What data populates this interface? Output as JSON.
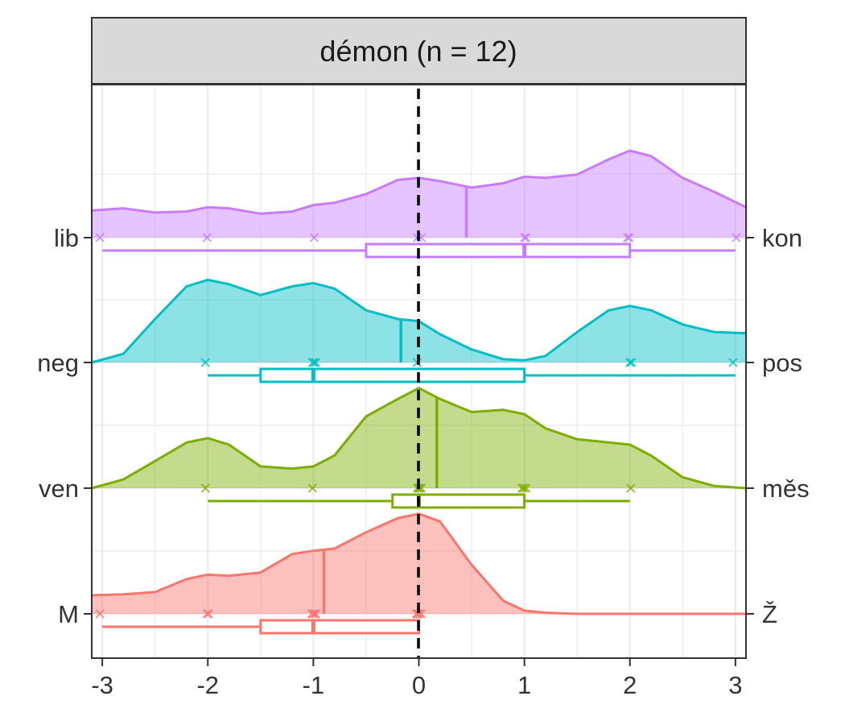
{
  "chart_data": {
    "type": "ridgeline-density",
    "title": "",
    "facet_title": "démon (n = 12)",
    "xlabel": "",
    "ylabel": "",
    "xlim": [
      -3.1,
      3.1
    ],
    "x_ticks": [
      "-3",
      "-2",
      "-1",
      "0",
      "1",
      "2",
      "3"
    ],
    "x_tick_values": [
      -3,
      -2,
      -1,
      0,
      1,
      2,
      3
    ],
    "reference_line_x": 0,
    "grid": true,
    "legend": "none",
    "density_x": [
      -3.1,
      -2.8,
      -2.5,
      -2.2,
      -2.0,
      -1.8,
      -1.5,
      -1.2,
      -1.0,
      -0.8,
      -0.5,
      -0.2,
      0.0,
      0.2,
      0.5,
      0.8,
      1.0,
      1.2,
      1.5,
      1.8,
      2.0,
      2.2,
      2.5,
      2.8,
      3.1
    ],
    "rows": [
      {
        "left_label": "M",
        "right_label": "Ž",
        "color": "#F8766D",
        "density": [
          0.17,
          0.18,
          0.2,
          0.32,
          0.36,
          0.35,
          0.38,
          0.55,
          0.58,
          0.6,
          0.75,
          0.88,
          0.92,
          0.85,
          0.45,
          0.12,
          0.03,
          0.01,
          0.0,
          0.0,
          0.0,
          0.0,
          0.0,
          0.0,
          0.0
        ],
        "mean": -0.9,
        "points": [
          -3,
          -2,
          -2,
          -1,
          -1,
          -1,
          -1,
          0,
          0,
          0,
          0,
          0
        ],
        "box": {
          "min": -3,
          "q1": -1.5,
          "median": -1,
          "q3": 0,
          "max": 0
        }
      },
      {
        "left_label": "ven",
        "right_label": "měs",
        "color": "#7CAE00",
        "density": [
          0.0,
          0.08,
          0.25,
          0.42,
          0.46,
          0.4,
          0.2,
          0.18,
          0.2,
          0.3,
          0.66,
          0.82,
          0.92,
          0.82,
          0.7,
          0.72,
          0.68,
          0.55,
          0.45,
          0.42,
          0.4,
          0.3,
          0.1,
          0.02,
          0.0
        ],
        "mean": 0.17,
        "points": [
          -2,
          -1,
          0,
          0,
          0,
          0,
          1,
          1,
          1,
          2
        ],
        "box": {
          "min": -2,
          "q1": -0.25,
          "median": 0,
          "q3": 1,
          "max": 2
        }
      },
      {
        "left_label": "neg",
        "right_label": "pos",
        "color": "#00BFC4",
        "density": [
          0.0,
          0.08,
          0.4,
          0.7,
          0.76,
          0.72,
          0.62,
          0.7,
          0.73,
          0.68,
          0.48,
          0.4,
          0.38,
          0.26,
          0.12,
          0.03,
          0.02,
          0.06,
          0.28,
          0.48,
          0.52,
          0.48,
          0.35,
          0.28,
          0.27
        ],
        "mean": -0.17,
        "points": [
          -2,
          -1,
          -1,
          -1,
          0,
          2,
          2,
          3
        ],
        "box": {
          "min": -2,
          "q1": -1.5,
          "median": -1,
          "q3": 1,
          "max": 3
        }
      },
      {
        "left_label": "lib",
        "right_label": "kon",
        "color": "#C77CFF",
        "density": [
          0.25,
          0.27,
          0.23,
          0.24,
          0.28,
          0.27,
          0.22,
          0.24,
          0.3,
          0.32,
          0.4,
          0.53,
          0.55,
          0.52,
          0.46,
          0.5,
          0.56,
          0.55,
          0.58,
          0.72,
          0.8,
          0.75,
          0.55,
          0.42,
          0.28
        ],
        "mean": 0.45,
        "points": [
          -3,
          -2,
          -1,
          0,
          0,
          1,
          1,
          2,
          2,
          3
        ],
        "box": {
          "min": -3,
          "q1": -0.5,
          "median": 1,
          "q3": 2,
          "max": 3
        }
      }
    ]
  }
}
